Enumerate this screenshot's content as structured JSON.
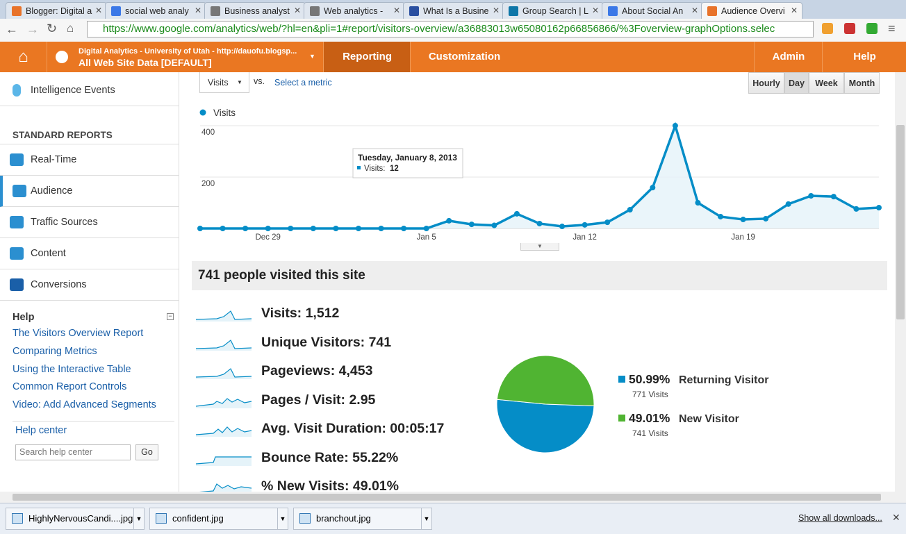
{
  "tabs": [
    "Blogger: Digital a",
    "social web analy",
    "Business analyst",
    "Web analytics - ",
    "What Is a Busine",
    "Group Search | L",
    "About Social An",
    "Audience Overvi"
  ],
  "url": "https://www.google.com/analytics/web/?hl=en&pli=1#report/visitors-overview/a36883013w65080162p66856866/%3Foverview-graphOptions.selec",
  "header": {
    "account": "Digital Analytics - University of Utah - http://dauofu.blogsp...",
    "profile": "All Web Site Data [DEFAULT]",
    "nav": [
      "Reporting",
      "Customization",
      "Admin",
      "Help"
    ]
  },
  "sidebar": {
    "top_item": "Intelligence Events",
    "section": "STANDARD REPORTS",
    "items": [
      "Real-Time",
      "Audience",
      "Traffic Sources",
      "Content",
      "Conversions"
    ],
    "help": {
      "title": "Help",
      "links": [
        "The Visitors Overview Report",
        "Comparing Metrics",
        "Using the Interactive Table",
        "Common Report Controls",
        "Video: Add Advanced Segments"
      ],
      "center": "Help center",
      "search_placeholder": "Search help center",
      "button": "Go"
    }
  },
  "report": {
    "metric": "Visits",
    "vs": "vs.",
    "select": "Select a metric",
    "granularity": [
      "Hourly",
      "Day",
      "Week",
      "Month"
    ],
    "summary_title": "741 people visited this site",
    "metrics": [
      "Visits: 1,512",
      "Unique Visitors: 741",
      "Pageviews: 4,453",
      "Pages / Visit: 2.95",
      "Avg. Visit Duration: 00:05:17",
      "Bounce Rate: 55.22%",
      "% New Visits: 49.01%"
    ]
  },
  "chart_data": [
    {
      "type": "line",
      "categories": [
        null,
        null,
        null,
        "Dec 29",
        null,
        null,
        null,
        null,
        null,
        null,
        "Jan 5",
        null,
        null,
        null,
        null,
        null,
        null,
        "Jan 12",
        null,
        null,
        null,
        null,
        null,
        null,
        "Jan 19",
        null,
        null,
        null,
        null,
        null,
        null
      ],
      "series": [
        {
          "name": "Visits",
          "color": "#058dc7",
          "values": [
            0,
            0,
            0,
            0,
            0,
            0,
            0,
            0,
            0,
            0,
            0,
            30,
            16,
            12,
            57,
            19,
            8,
            14,
            24,
            73,
            159,
            400,
            100,
            46,
            35,
            38,
            95,
            127,
            124,
            76,
            81
          ]
        }
      ],
      "ylim": [
        0,
        400
      ],
      "yticks": [
        200,
        400
      ],
      "grid": true,
      "tooltip": {
        "title": "Tuesday, January 8, 2013",
        "label": "Visits:",
        "value": 12
      }
    },
    {
      "type": "pie",
      "categories": [
        "Returning Visitor",
        "New Visitor"
      ],
      "values": [
        50.99,
        49.01
      ],
      "value_labels": [
        "50.99%",
        "49.01%"
      ],
      "colors": [
        "#058dc7",
        "#50b432"
      ],
      "sublabels": [
        "771 Visits",
        "741 Visits"
      ]
    }
  ],
  "downloads": {
    "files": [
      "HighlyNervousCandi....jpg",
      "confident.jpg",
      "branchout.jpg"
    ],
    "show_all": "Show all downloads..."
  }
}
